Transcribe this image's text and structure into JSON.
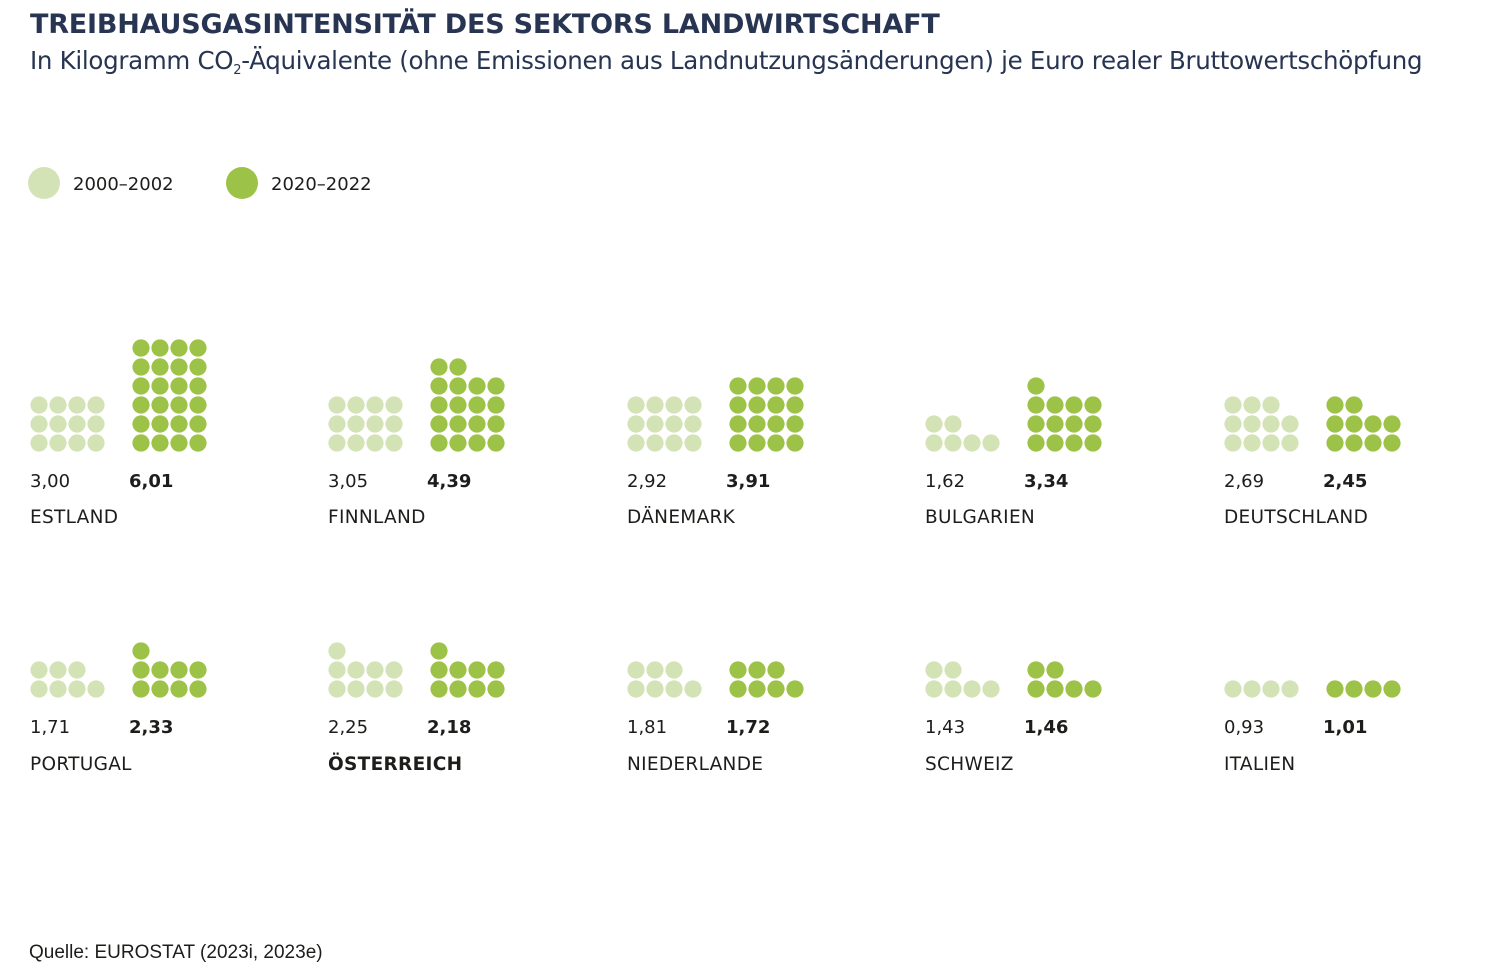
{
  "title": "TREIBHAUSGASINTENSITÄT DES SEKTORS LANDWIRTSCHAFT",
  "subtitle": {
    "before": "In Kilogramm CO",
    "sub": "2",
    "after": "-Äquivalente (ohne Emissionen aus Landnutzungsänderungen) je Euro realer Bruttowertschöpfung"
  },
  "source": "Quelle: EUROSTAT (2023i, 2023e)",
  "colors": {
    "period_2000": "#d3e3b5",
    "period_2020": "#9dc248"
  },
  "chart_data": {
    "type": "dot-matrix",
    "title": "TREIBHAUSGASINTENSITÄT DES SEKTORS LANDWIRTSCHAFT",
    "unit": "kg CO2-Äquivalente je Euro realer Bruttowertschöpfung",
    "legend": {
      "position": "top-left",
      "entries": [
        "2000–2002",
        "2020–2022"
      ]
    },
    "series_names": [
      "2000–2002",
      "2020–2022"
    ],
    "categories": [
      {
        "country": "ESTLAND",
        "highlight": false,
        "v2000": 3.0,
        "v2000_label": "3,00",
        "v2020": 6.01,
        "v2020_label": "6,01"
      },
      {
        "country": "FINNLAND",
        "highlight": false,
        "v2000": 3.05,
        "v2000_label": "3,05",
        "v2020": 4.39,
        "v2020_label": "4,39"
      },
      {
        "country": "DÄNEMARK",
        "highlight": false,
        "v2000": 2.92,
        "v2000_label": "2,92",
        "v2020": 3.91,
        "v2020_label": "3,91"
      },
      {
        "country": "BULGARIEN",
        "highlight": false,
        "v2000": 1.62,
        "v2000_label": "1,62",
        "v2020": 3.34,
        "v2020_label": "3,34"
      },
      {
        "country": "DEUTSCHLAND",
        "highlight": false,
        "v2000": 2.69,
        "v2000_label": "2,69",
        "v2020": 2.45,
        "v2020_label": "2,45"
      },
      {
        "country": "PORTUGAL",
        "highlight": false,
        "v2000": 1.71,
        "v2000_label": "1,71",
        "v2020": 2.33,
        "v2020_label": "2,33"
      },
      {
        "country": "ÖSTERREICH",
        "highlight": true,
        "v2000": 2.25,
        "v2000_label": "2,25",
        "v2020": 2.18,
        "v2020_label": "2,18"
      },
      {
        "country": "NIEDERLANDE",
        "highlight": false,
        "v2000": 1.81,
        "v2000_label": "1,81",
        "v2020": 1.72,
        "v2020_label": "1,72"
      },
      {
        "country": "SCHWEIZ",
        "highlight": false,
        "v2000": 1.43,
        "v2000_label": "1,43",
        "v2020": 1.46,
        "v2020_label": "1,46"
      },
      {
        "country": "ITALIEN",
        "highlight": false,
        "v2000": 0.93,
        "v2000_label": "0,93",
        "v2020": 1.01,
        "v2020_label": "1,01"
      }
    ]
  }
}
